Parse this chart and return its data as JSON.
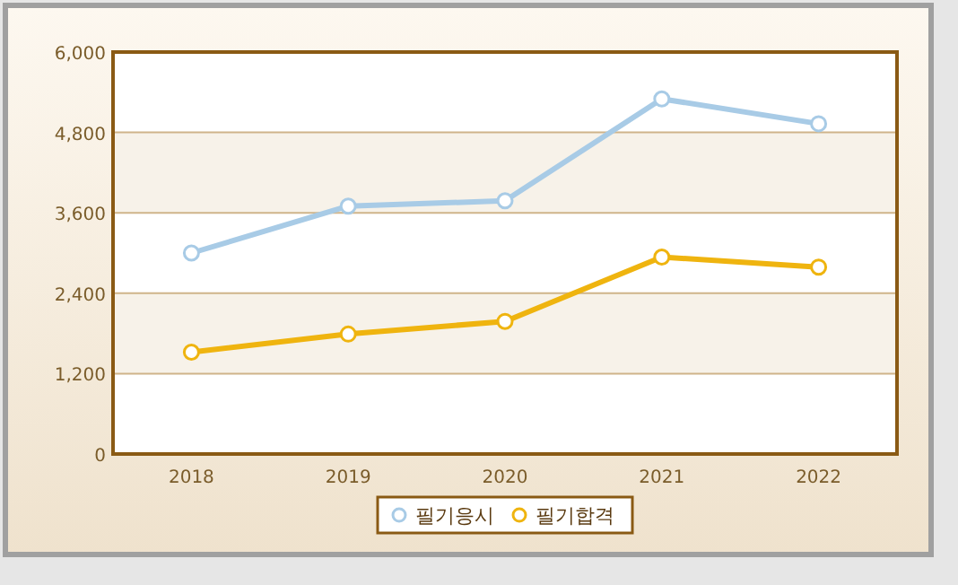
{
  "chart_data": {
    "type": "line",
    "categories": [
      "2018",
      "2019",
      "2020",
      "2021",
      "2022"
    ],
    "series": [
      {
        "name": "필기응시",
        "color": "#a8cbe6",
        "values": [
          3000,
          3700,
          3780,
          5300,
          4930
        ]
      },
      {
        "name": "필기합격",
        "color": "#efb40f",
        "values": [
          1520,
          1790,
          1980,
          2940,
          2790
        ]
      }
    ],
    "ylim": [
      0,
      6000
    ],
    "yticks": [
      {
        "value": 0,
        "label": "0"
      },
      {
        "value": 1200,
        "label": "1,200"
      },
      {
        "value": 2400,
        "label": "2,400"
      },
      {
        "value": 3600,
        "label": "3,600"
      },
      {
        "value": 4800,
        "label": "4,800"
      },
      {
        "value": 6000,
        "label": "6,000"
      }
    ],
    "grid": "y",
    "legend": "bottom",
    "marker": "circle",
    "line_style": "solid"
  }
}
